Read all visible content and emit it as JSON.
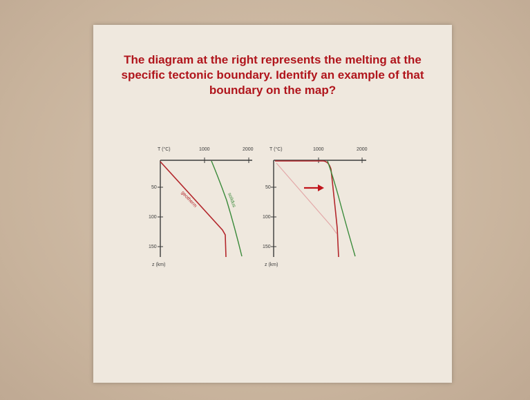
{
  "slide": {
    "title": "The diagram at the right represents the melting at the specific tectonic boundary. Identify an example of that boundary on the map?"
  },
  "diagram": {
    "panels": [
      {
        "temp_axis_label": "T (°C)",
        "temp_ticks": [
          "1000",
          "2000"
        ],
        "depth_ticks": [
          "50",
          "100",
          "150"
        ],
        "depth_axis_label": "z (km)",
        "curve_labels": [
          "geotherm",
          "solidus"
        ]
      },
      {
        "temp_axis_label": "T (°C)",
        "temp_ticks": [
          "1000",
          "2000"
        ],
        "depth_ticks": [
          "50",
          "100",
          "150"
        ],
        "depth_axis_label": "z (km)"
      }
    ],
    "colors": {
      "geotherm": "#b3262b",
      "solidus": "#3a8a3a",
      "old_geotherm": "#e3a9a9",
      "arrow": "#c0141b",
      "axis": "#3a3a3a"
    }
  }
}
